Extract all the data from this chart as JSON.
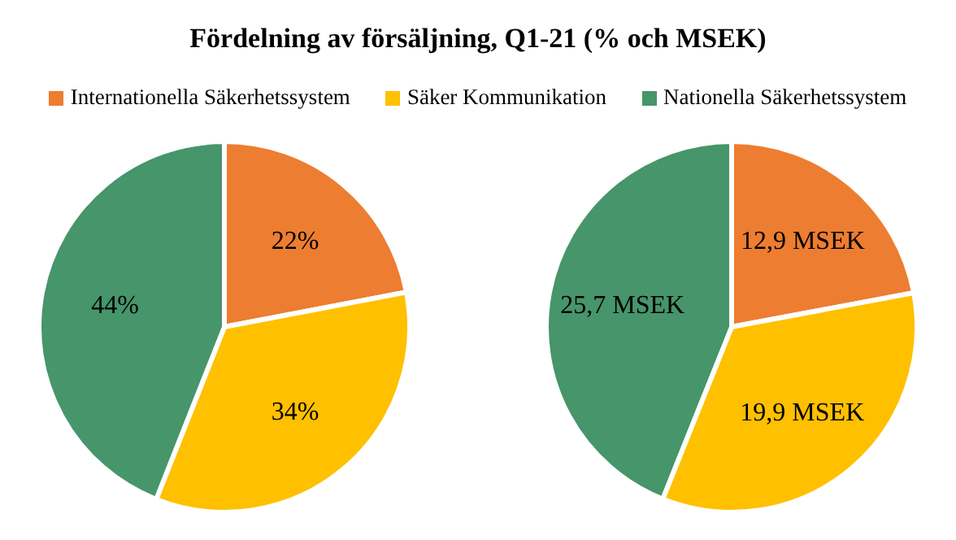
{
  "chart_data": [
    {
      "type": "pie",
      "title": "Fördelning av försäljning, Q1-21 (% och MSEK)",
      "legend": "top",
      "categories": [
        "Internationella Säkerhetssystem",
        "Säker Kommunikation",
        "Nationella Säkerhetssystem"
      ],
      "values": [
        22,
        34,
        44
      ],
      "colors": [
        "#ed7d31",
        "#ffc000",
        "#47956a"
      ],
      "value_labels": [
        "22%",
        "34%",
        "44%"
      ]
    },
    {
      "type": "pie",
      "categories": [
        null,
        null,
        null
      ],
      "values": [
        12.9,
        19.9,
        25.7
      ],
      "colors": [
        "#ed7d31",
        "#ffc000",
        "#47956a"
      ],
      "value_labels": [
        "12,9 MSEK",
        "19,9 MSEK",
        "25,7 MSEK"
      ]
    }
  ]
}
